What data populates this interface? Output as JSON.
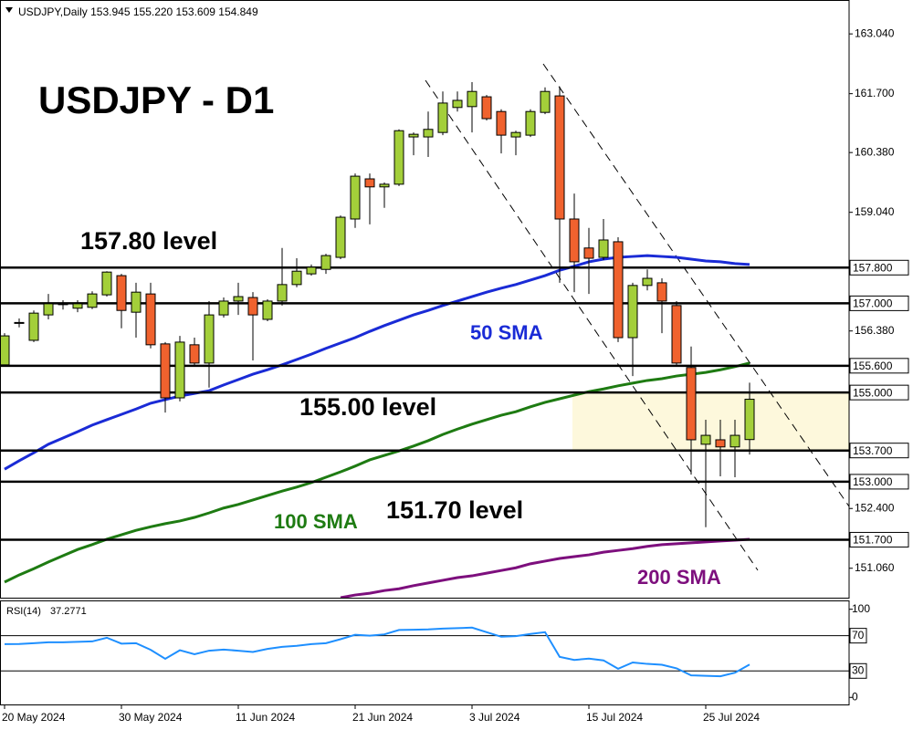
{
  "chart_data": [
    {
      "type": "candlestick",
      "title": "USDJPY - D1",
      "subtitle": "USDJPY,Daily  153.945 155.220 153.609 154.849",
      "categories": [
        "20 May 2024",
        null,
        null,
        null,
        null,
        null,
        null,
        null,
        "30 May 2024",
        null,
        null,
        null,
        null,
        null,
        null,
        null,
        "11 Jun 2024",
        null,
        null,
        null,
        null,
        null,
        null,
        null,
        "21 Jun 2024",
        null,
        null,
        null,
        null,
        null,
        null,
        null,
        "3 Jul 2024",
        null,
        null,
        null,
        null,
        null,
        null,
        null,
        "15 Jul 2024",
        null,
        null,
        null,
        null,
        null,
        null,
        null,
        "25 Jul 2024",
        null,
        null,
        null
      ],
      "open": [
        155.62,
        156.55,
        156.17,
        156.74,
        156.97,
        156.89,
        156.91,
        157.19,
        157.62,
        156.8,
        157.21,
        156.09,
        154.88,
        156.07,
        155.66,
        156.74,
        157.05,
        157.13,
        156.64,
        157.05,
        157.42,
        157.66,
        157.76,
        158.03,
        158.89,
        159.79,
        159.61,
        159.67,
        160.73,
        160.73,
        160.83,
        161.39,
        161.41,
        161.63,
        161.3,
        160.73,
        160.77,
        161.28,
        161.65,
        158.89,
        158.24,
        158.03,
        158.38,
        156.23,
        157.4,
        157.46,
        156.95,
        155.56,
        153.84,
        153.94,
        153.78,
        153.945
      ],
      "high": [
        156.33,
        156.66,
        156.84,
        157.21,
        157.07,
        157.07,
        157.27,
        157.72,
        157.66,
        157.46,
        157.46,
        156.13,
        156.27,
        156.23,
        157.05,
        157.13,
        157.46,
        157.25,
        157.09,
        158.24,
        158.01,
        157.87,
        158.11,
        158.97,
        159.91,
        159.91,
        159.71,
        160.9,
        160.83,
        161.3,
        161.75,
        161.75,
        161.96,
        161.67,
        161.35,
        160.87,
        161.35,
        161.84,
        161.86,
        159.46,
        158.69,
        158.89,
        158.48,
        157.46,
        157.76,
        157.56,
        157.05,
        156.03,
        154.39,
        154.39,
        154.39,
        155.22
      ],
      "low": [
        155.58,
        156.46,
        156.13,
        156.64,
        156.86,
        156.8,
        156.87,
        157.15,
        156.44,
        156.23,
        155.99,
        154.55,
        154.8,
        155.58,
        155.11,
        156.68,
        156.74,
        155.72,
        156.6,
        156.95,
        157.36,
        157.62,
        157.66,
        157.99,
        158.69,
        158.77,
        159.14,
        159.63,
        160.32,
        160.28,
        160.77,
        161.3,
        160.83,
        161.1,
        160.36,
        160.32,
        160.73,
        161.24,
        157.46,
        157.25,
        157.21,
        157.97,
        156.13,
        155.37,
        157.29,
        156.33,
        155.62,
        153.16,
        151.98,
        153.12,
        153.1,
        153.609
      ],
      "close": [
        156.27,
        156.57,
        156.78,
        156.99,
        156.99,
        156.99,
        157.21,
        157.7,
        156.84,
        157.25,
        156.07,
        154.88,
        156.13,
        155.66,
        156.74,
        157.05,
        157.15,
        156.74,
        157.05,
        157.42,
        157.72,
        157.81,
        158.07,
        158.93,
        159.85,
        159.61,
        159.67,
        160.87,
        160.79,
        160.9,
        161.49,
        161.55,
        161.75,
        161.14,
        160.77,
        160.83,
        161.3,
        161.75,
        158.89,
        157.93,
        158.01,
        158.42,
        156.23,
        157.4,
        157.56,
        157.05,
        155.66,
        153.94,
        154.04,
        153.78,
        154.04,
        154.849
      ],
      "up_color": "#a3cf3a",
      "down_color": "#f0622e",
      "series": [
        {
          "name": "50 SMA",
          "color": "#1a2bd6",
          "values": [
            153.28,
            153.47,
            153.65,
            153.84,
            153.98,
            154.12,
            154.27,
            154.39,
            154.51,
            154.63,
            154.76,
            154.84,
            154.92,
            154.98,
            155.04,
            155.17,
            155.29,
            155.41,
            155.51,
            155.62,
            155.74,
            155.86,
            155.99,
            156.11,
            156.23,
            156.37,
            156.5,
            156.62,
            156.74,
            156.84,
            156.95,
            157.05,
            157.15,
            157.25,
            157.34,
            157.42,
            157.52,
            157.62,
            157.74,
            157.83,
            157.93,
            157.99,
            158.03,
            158.05,
            158.07,
            158.05,
            158.03,
            157.99,
            157.95,
            157.93,
            157.89,
            157.87
          ]
        },
        {
          "name": "100 SMA",
          "color": "#1e7b12",
          "values": [
            150.75,
            150.91,
            151.05,
            151.2,
            151.34,
            151.48,
            151.59,
            151.71,
            151.81,
            151.91,
            151.99,
            152.06,
            152.12,
            152.2,
            152.3,
            152.41,
            152.49,
            152.59,
            152.69,
            152.79,
            152.88,
            152.98,
            153.1,
            153.22,
            153.35,
            153.49,
            153.59,
            153.69,
            153.8,
            153.92,
            154.06,
            154.18,
            154.29,
            154.39,
            154.49,
            154.57,
            154.68,
            154.78,
            154.86,
            154.94,
            155.02,
            155.08,
            155.15,
            155.21,
            155.27,
            155.31,
            155.37,
            155.41,
            155.45,
            155.51,
            155.58,
            155.66
          ]
        },
        {
          "name": "200 SMA",
          "color": "#7d0f7d",
          "values": [
            null,
            null,
            null,
            null,
            null,
            null,
            null,
            null,
            null,
            null,
            null,
            null,
            null,
            null,
            null,
            null,
            null,
            null,
            null,
            null,
            null,
            null,
            null,
            150.4,
            150.46,
            150.5,
            150.56,
            150.6,
            150.67,
            150.73,
            150.79,
            150.85,
            150.89,
            150.95,
            151.01,
            151.07,
            151.16,
            151.22,
            151.28,
            151.32,
            151.36,
            151.42,
            151.46,
            151.5,
            151.55,
            151.59,
            151.61,
            151.63,
            151.65,
            151.67,
            151.69,
            151.71
          ]
        }
      ],
      "levels": [
        {
          "value": 157.8,
          "label": "157.800",
          "note": "157.80 level"
        },
        {
          "value": 157.0,
          "label": "157.000"
        },
        {
          "value": 155.6,
          "label": "155.600"
        },
        {
          "value": 155.0,
          "label": "155.000",
          "note": "155.00 level"
        },
        {
          "value": 153.7,
          "label": "153.700"
        },
        {
          "value": 153.0,
          "label": "153.000"
        },
        {
          "value": 151.7,
          "label": "151.700",
          "note": "151.70 level"
        }
      ],
      "zone": {
        "from": 153.7,
        "to": 155.0,
        "color": "#fdf8dc"
      },
      "ylim": [
        150.4,
        163.8
      ],
      "yticks": [
        {
          "value": 163.04,
          "label": "163.040"
        },
        {
          "value": 161.7,
          "label": "161.700"
        },
        {
          "value": 160.38,
          "label": "160.380"
        },
        {
          "value": 159.04,
          "label": "159.040"
        },
        {
          "value": 156.38,
          "label": "156.380"
        },
        {
          "value": 152.4,
          "label": "152.400"
        },
        {
          "value": 151.06,
          "label": "151.060"
        }
      ],
      "grid": false
    },
    {
      "type": "line",
      "series": [
        {
          "name": "RSI(14)",
          "color": "#1e8fff",
          "values": [
            60.4,
            60.6,
            61.5,
            62.5,
            62.5,
            63.0,
            63.5,
            67.7,
            61.0,
            61.5,
            54.0,
            43.8,
            53.5,
            49.0,
            53.0,
            54.2,
            53.0,
            51.5,
            55.0,
            57.3,
            58.5,
            60.4,
            61.5,
            66.0,
            71.0,
            70.0,
            71.5,
            76.5,
            76.8,
            77.1,
            78.1,
            78.5,
            79.2,
            74.0,
            68.8,
            69.5,
            72.0,
            74.0,
            46.0,
            42.5,
            44.0,
            42.0,
            32.5,
            39.6,
            38.0,
            37.0,
            33.0,
            25.0,
            24.5,
            24.0,
            28.0,
            37.2771
          ]
        }
      ],
      "levels": [
        70,
        30
      ],
      "ylim": [
        -8,
        110
      ],
      "yticks": [
        100,
        70,
        30,
        0
      ],
      "grid": false
    }
  ]
}
